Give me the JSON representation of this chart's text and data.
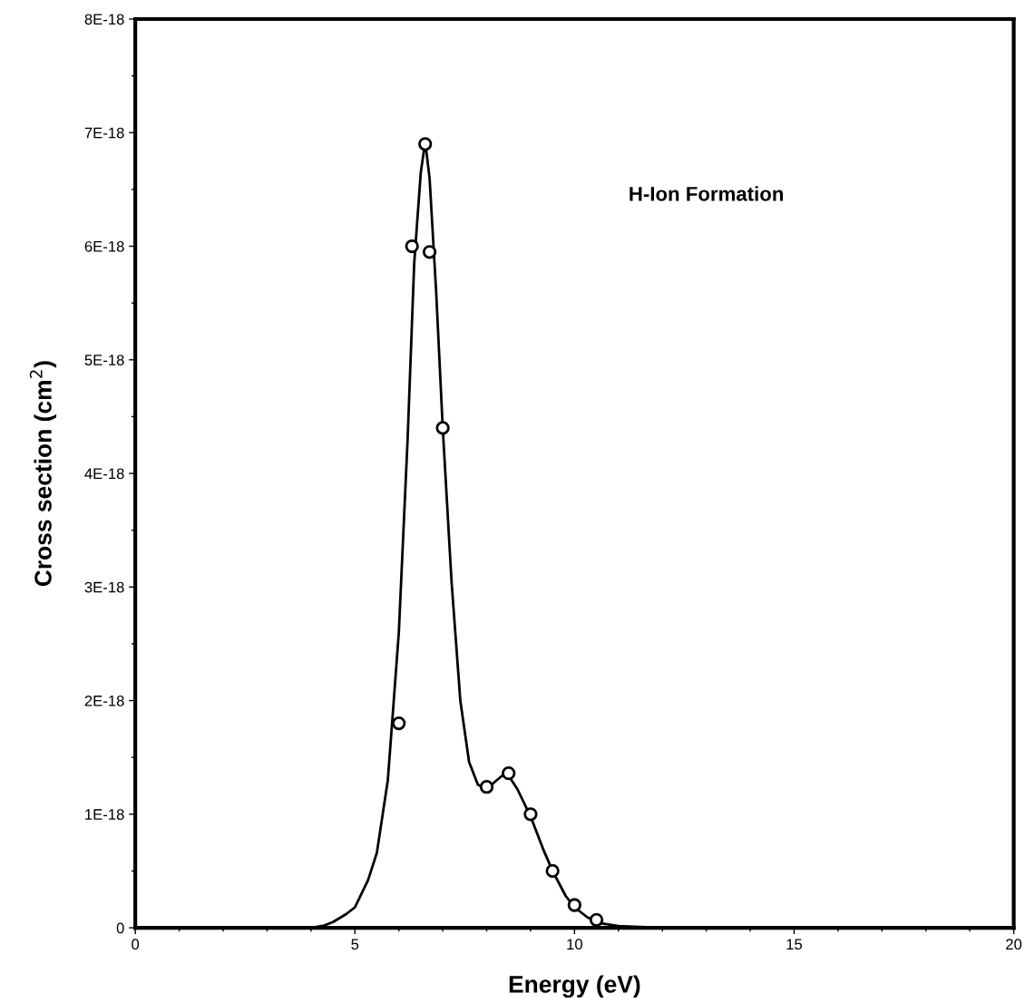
{
  "chart_data": {
    "type": "scatter",
    "xlabel": "Energy (eV)",
    "ylabel": "Cross section (cm$^{2}$)",
    "annotations": [
      "H-Ion Formation"
    ],
    "series": [
      {
        "type": "line",
        "color": "#000000",
        "marker": "none",
        "x": [
          0,
          3.5,
          4.0,
          4.3,
          4.5,
          4.8,
          5.0,
          5.3,
          5.5,
          5.75,
          6.0,
          6.2,
          6.35,
          6.5,
          6.6,
          6.7,
          6.85,
          7.0,
          7.2,
          7.4,
          7.6,
          7.8,
          8.0,
          8.2,
          8.45,
          8.7,
          9.0,
          9.3,
          9.5,
          9.8,
          10.0,
          10.3,
          10.6,
          11.0,
          12.0,
          20
        ],
        "values": [
          0,
          0,
          0,
          2e-20,
          5e-20,
          1.2e-19,
          1.8e-19,
          4.2e-19,
          6.6e-19,
          1.3e-18,
          2.6e-18,
          4.3e-18,
          5.85e-18,
          6.65e-18,
          6.92e-18,
          6.6e-18,
          5.6e-18,
          4.4e-18,
          3.05e-18,
          2e-18,
          1.46e-18,
          1.26e-18,
          1.22e-18,
          1.29e-18,
          1.37e-18,
          1.22e-18,
          9.8e-19,
          6.8e-19,
          5e-19,
          2.8e-19,
          1.8e-19,
          9e-20,
          4e-20,
          1.5e-20,
          0,
          0
        ]
      },
      {
        "color": "#000000",
        "marker": "circle",
        "x": [
          6.0,
          6.3,
          6.6,
          6.7,
          7.0,
          8.0,
          8.5,
          9.0,
          9.5,
          10.0,
          10.5
        ],
        "values": [
          1.8e-18,
          6e-18,
          6.9e-18,
          5.95e-18,
          4.4e-18,
          1.24e-18,
          1.36e-18,
          1e-18,
          5e-19,
          2e-19,
          7e-20
        ]
      }
    ],
    "xlim": [
      0,
      20
    ],
    "xticks": [
      0,
      5,
      10,
      15,
      20
    ],
    "ylim": [
      0,
      8e-18
    ],
    "yticks": [
      0,
      {
        "value": 1e-18,
        "label": "1E-18"
      },
      {
        "value": 2e-18,
        "label": "2E-18"
      },
      {
        "value": 3e-18,
        "label": "3E-18"
      },
      {
        "value": 4e-18,
        "label": "4E-18"
      },
      {
        "value": 5e-18,
        "label": "5E-18"
      },
      {
        "value": 6e-18,
        "label": "6E-18"
      },
      {
        "value": 7e-18,
        "label": "7E-18"
      },
      {
        "value": 8e-18,
        "label": "8E-18"
      }
    ],
    "grid": false,
    "legend": false
  }
}
